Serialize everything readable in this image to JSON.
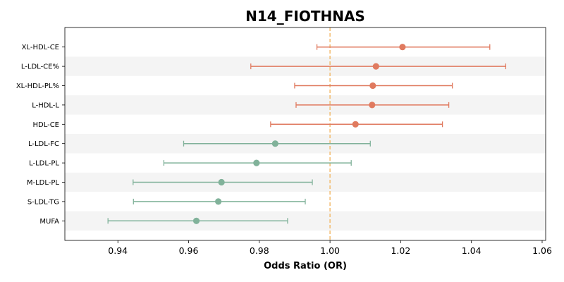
{
  "chart_data": {
    "type": "forest",
    "title": "N14_FIOTHNAS",
    "xlabel": "Odds Ratio (OR)",
    "ylabel": "",
    "xlim": [
      0.925,
      1.061
    ],
    "xticks": [
      "0.94",
      "0.96",
      "0.98",
      "1.00",
      "1.02",
      "1.04",
      "1.06"
    ],
    "reference_line": 1.0,
    "colors": {
      "positive": "#e07a5f",
      "negative": "#81b29a",
      "reference": "#f2b866",
      "band": "#f4f4f4"
    },
    "rows": [
      {
        "label": "XL-HDL-CE",
        "or": 1.0205,
        "lo": 0.9963,
        "hi": 1.0452
      },
      {
        "label": "L-LDL-CE%",
        "or": 1.013,
        "lo": 0.9776,
        "hi": 1.0497
      },
      {
        "label": "XL-HDL-PL%",
        "or": 1.0121,
        "lo": 0.99,
        "hi": 1.0346
      },
      {
        "label": "L-HDL-L",
        "or": 1.0119,
        "lo": 0.9904,
        "hi": 1.0336
      },
      {
        "label": "HDL-CE",
        "or": 1.0072,
        "lo": 0.9832,
        "hi": 1.0318
      },
      {
        "label": "L-LDL-FC",
        "or": 0.9845,
        "lo": 0.9586,
        "hi": 1.0114
      },
      {
        "label": "L-LDL-PL",
        "or": 0.9792,
        "lo": 0.953,
        "hi": 1.006
      },
      {
        "label": "M-LDL-PL",
        "or": 0.9693,
        "lo": 0.9443,
        "hi": 0.995
      },
      {
        "label": "S-LDL-TG",
        "or": 0.9684,
        "lo": 0.9444,
        "hi": 0.993
      },
      {
        "label": "MUFA",
        "or": 0.9622,
        "lo": 0.9372,
        "hi": 0.988
      }
    ]
  }
}
